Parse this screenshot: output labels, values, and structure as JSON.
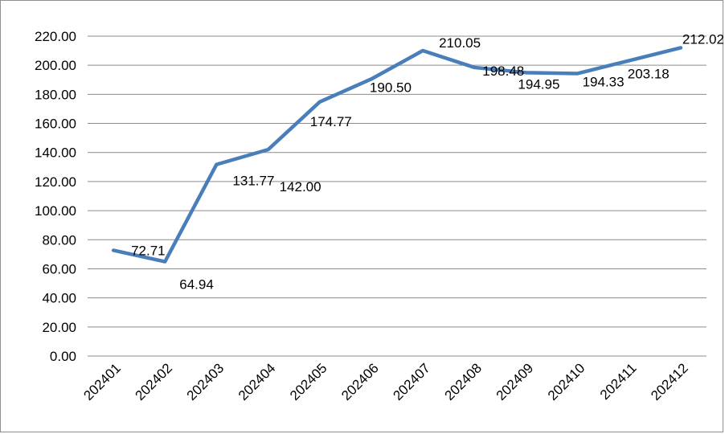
{
  "chart_data": {
    "type": "line",
    "title": "",
    "xlabel": "",
    "ylabel": "",
    "categories": [
      "202401",
      "202402",
      "202403",
      "202404",
      "202405",
      "202406",
      "202407",
      "202408",
      "202409",
      "202410",
      "202411",
      "202412"
    ],
    "series": [
      {
        "values": [
          72.71,
          64.94,
          131.77,
          142.0,
          174.77,
          190.5,
          210.05,
          198.48,
          194.95,
          194.33,
          203.18,
          212.02
        ],
        "labels": [
          "72.71",
          "64.94",
          "131.77",
          "142.00",
          "174.77",
          "190.50",
          "210.05",
          "198.48",
          "194.95",
          "194.33",
          "203.18",
          "212.02"
        ],
        "color": "#4a7ebb"
      }
    ],
    "yticks": [
      "0.00",
      "20.00",
      "40.00",
      "60.00",
      "80.00",
      "100.00",
      "120.00",
      "140.00",
      "160.00",
      "180.00",
      "200.00",
      "220.00"
    ],
    "ylim": [
      0,
      220
    ],
    "grid": true,
    "legend": "none"
  }
}
